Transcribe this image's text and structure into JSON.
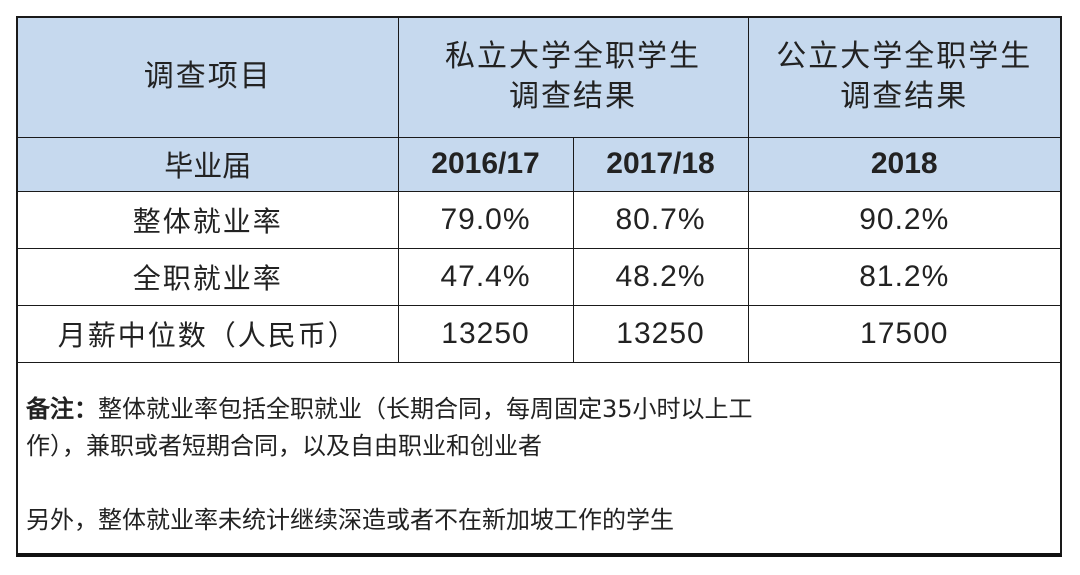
{
  "table": {
    "header": {
      "item_label": "调查项目",
      "private_group": [
        "私立大学全职学生",
        "调查结果"
      ],
      "public_group": [
        "公立大学全职学生",
        "调查结果"
      ],
      "header_bg": "#c6d9ee"
    },
    "years_row": {
      "label": "毕业届",
      "years": [
        "2016/17",
        "2017/18",
        "2018"
      ]
    },
    "rows": [
      {
        "label": "整体就业率",
        "values": [
          "79.0%",
          "80.7%",
          "90.2%"
        ]
      },
      {
        "label": "全职就业率",
        "values": [
          "47.4%",
          "48.2%",
          "81.2%"
        ]
      },
      {
        "label": "月薪中位数（人民币）",
        "values": [
          "13250",
          "13250",
          "17500"
        ]
      }
    ]
  },
  "notes": {
    "prefix": "备注：",
    "line1": "整体就业率包括全职就业（长期合同，每周固定35小时以上工",
    "line2": "作），兼职或者短期合同，以及自由职业和创业者",
    "line3": "另外，整体就业率未统计继续深造或者不在新加坡工作的学生"
  }
}
